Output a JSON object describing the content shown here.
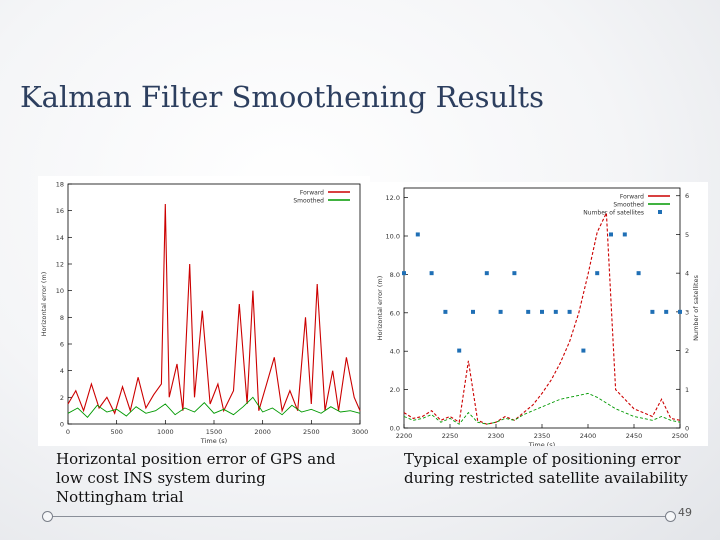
{
  "slide": {
    "title": "Kalman Filter Smoothening Results",
    "caption_left": "Horizontal position error of GPS and low cost INS system during Nottingham trial",
    "caption_right": "Typical example of positioning error during restricted satellite availability",
    "page_number": "49"
  },
  "chart_data": [
    {
      "type": "line",
      "title": "",
      "xlabel": "Time (s)",
      "ylabel": "Horizontal error (m)",
      "xlim": [
        0,
        3000
      ],
      "ylim": [
        0,
        18
      ],
      "xticks": [
        0,
        500,
        1000,
        1500,
        2000,
        2500,
        3000
      ],
      "xtick_labels": [
        "0",
        "500",
        "1000",
        "1500",
        "2000",
        "2500",
        "3000"
      ],
      "yticks": [
        0,
        2,
        4,
        6,
        8,
        10,
        12,
        14,
        16,
        18
      ],
      "ytick_labels": [
        "0",
        "2",
        "4",
        "6",
        "8",
        "10",
        "12",
        "14",
        "16",
        "18"
      ],
      "legend": [
        "Forward",
        "Smoothed"
      ],
      "colors": {
        "forward": "#cc0000",
        "smoothed": "#009900"
      },
      "series": [
        {
          "name": "Forward",
          "x": [
            0,
            80,
            160,
            240,
            320,
            400,
            480,
            560,
            640,
            720,
            800,
            880,
            960,
            1000,
            1040,
            1120,
            1180,
            1250,
            1300,
            1380,
            1460,
            1540,
            1600,
            1700,
            1760,
            1840,
            1900,
            1960,
            2040,
            2120,
            2200,
            2280,
            2360,
            2440,
            2500,
            2560,
            2640,
            2720,
            2780,
            2860,
            2940,
            3000
          ],
          "y": [
            1.5,
            2.5,
            1.0,
            3.0,
            1.2,
            2.0,
            0.8,
            2.8,
            1.0,
            3.5,
            1.2,
            2.2,
            3.0,
            16.5,
            2.0,
            4.5,
            1.0,
            12.0,
            2.0,
            8.5,
            1.5,
            3.0,
            1.0,
            2.5,
            9.0,
            1.5,
            10.0,
            1.0,
            3.0,
            5.0,
            1.0,
            2.5,
            1.0,
            8.0,
            1.5,
            10.5,
            1.0,
            4.0,
            1.0,
            5.0,
            2.0,
            1.0
          ]
        },
        {
          "name": "Smoothed",
          "x": [
            0,
            100,
            200,
            300,
            400,
            500,
            600,
            700,
            800,
            900,
            1000,
            1100,
            1200,
            1300,
            1400,
            1500,
            1600,
            1700,
            1800,
            1900,
            2000,
            2100,
            2200,
            2300,
            2400,
            2500,
            2600,
            2700,
            2800,
            2900,
            3000
          ],
          "y": [
            0.8,
            1.2,
            0.5,
            1.4,
            0.9,
            1.1,
            0.6,
            1.3,
            0.8,
            1.0,
            1.5,
            0.7,
            1.2,
            0.9,
            1.6,
            0.8,
            1.1,
            0.7,
            1.3,
            2.0,
            0.9,
            1.2,
            0.7,
            1.4,
            0.9,
            1.1,
            0.8,
            1.3,
            0.9,
            1.0,
            0.8
          ]
        }
      ]
    },
    {
      "type": "line",
      "title": "",
      "xlabel": "Time (s)",
      "ylabel": "Horizontal error (m)",
      "y2label": "Number of satellites",
      "xlim": [
        2200,
        2500
      ],
      "ylim": [
        0,
        12.5
      ],
      "y2lim": [
        0,
        6.2
      ],
      "xticks": [
        2200,
        2250,
        2300,
        2350,
        2400,
        2450,
        2500
      ],
      "xtick_labels": [
        "2200",
        "2250",
        "2300",
        "2350",
        "2400",
        "2450",
        "2500"
      ],
      "yticks": [
        0,
        2,
        4,
        6,
        8,
        10,
        12
      ],
      "ytick_labels": [
        "0.0",
        "2.0",
        "4.0",
        "6.0",
        "8.0",
        "10.0",
        "12.0"
      ],
      "y2ticks": [
        0,
        1,
        2,
        3,
        4,
        5,
        6
      ],
      "y2tick_labels": [
        "0",
        "1",
        "2",
        "3",
        "4",
        "5",
        "6"
      ],
      "legend": [
        "Forward",
        "Smoothed",
        "Number of satellites"
      ],
      "colors": {
        "forward": "#cc0000",
        "smoothed": "#009900",
        "satellites": "#1f6fb5"
      },
      "series": [
        {
          "name": "Forward",
          "x": [
            2200,
            2210,
            2220,
            2230,
            2240,
            2250,
            2260,
            2270,
            2280,
            2290,
            2300,
            2310,
            2320,
            2330,
            2340,
            2350,
            2360,
            2370,
            2380,
            2390,
            2400,
            2410,
            2420,
            2430,
            2440,
            2450,
            2460,
            2470,
            2480,
            2490,
            2500
          ],
          "y": [
            0.8,
            0.5,
            0.6,
            0.9,
            0.4,
            0.6,
            0.3,
            3.5,
            0.4,
            0.2,
            0.3,
            0.6,
            0.4,
            0.8,
            1.2,
            1.8,
            2.5,
            3.4,
            4.5,
            6.0,
            8.0,
            10.2,
            11.2,
            2.0,
            1.5,
            1.0,
            0.8,
            0.6,
            1.5,
            0.5,
            0.4
          ]
        },
        {
          "name": "Smoothed",
          "x": [
            2200,
            2210,
            2220,
            2230,
            2240,
            2250,
            2260,
            2270,
            2280,
            2290,
            2300,
            2310,
            2320,
            2330,
            2340,
            2350,
            2360,
            2370,
            2380,
            2390,
            2400,
            2410,
            2420,
            2430,
            2440,
            2450,
            2460,
            2470,
            2480,
            2490,
            2500
          ],
          "y": [
            0.6,
            0.4,
            0.5,
            0.7,
            0.3,
            0.5,
            0.2,
            0.8,
            0.3,
            0.2,
            0.3,
            0.5,
            0.4,
            0.7,
            0.9,
            1.1,
            1.3,
            1.5,
            1.6,
            1.7,
            1.8,
            1.6,
            1.3,
            1.0,
            0.8,
            0.6,
            0.5,
            0.4,
            0.6,
            0.4,
            0.3
          ]
        },
        {
          "name": "Number of satellites",
          "axis": "y2",
          "x": [
            2200,
            2215,
            2230,
            2245,
            2260,
            2275,
            2290,
            2305,
            2320,
            2335,
            2350,
            2365,
            2380,
            2395,
            2410,
            2425,
            2440,
            2455,
            2470,
            2485,
            2500
          ],
          "y": [
            4,
            5,
            4,
            3,
            2,
            3,
            4,
            3,
            4,
            3,
            3,
            3,
            3,
            2,
            4,
            5,
            5,
            4,
            3,
            3,
            3
          ]
        }
      ]
    }
  ]
}
